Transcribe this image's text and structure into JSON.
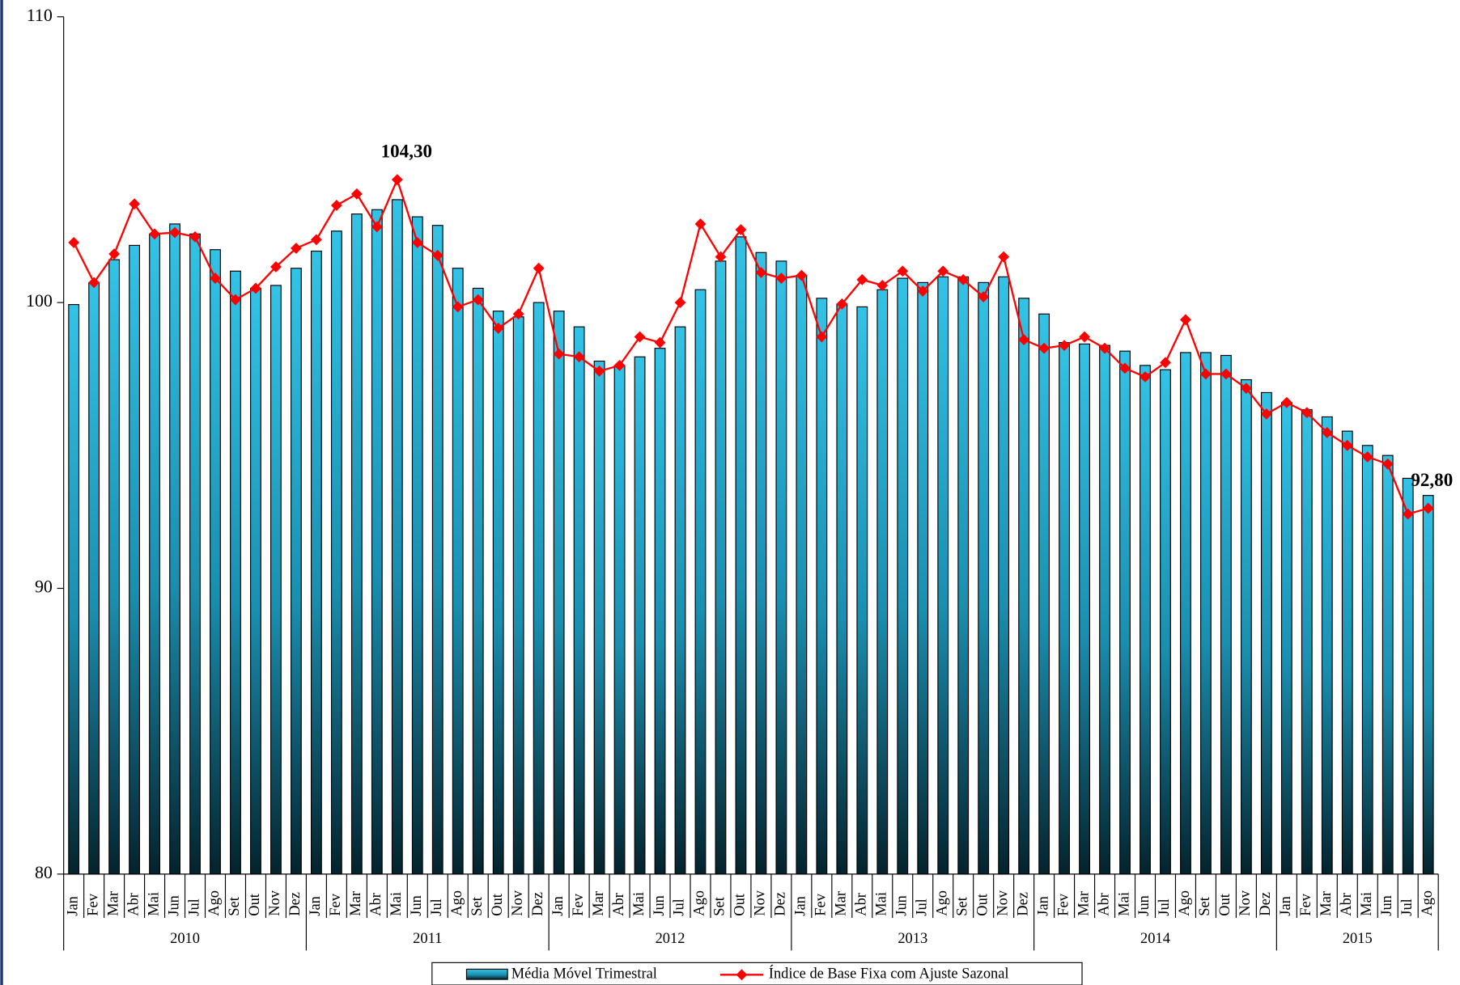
{
  "chart_data": {
    "type": "bar_line",
    "categories": [
      "Jan",
      "Fev",
      "Mar",
      "Abr",
      "Mai",
      "Jun",
      "Jul",
      "Ago",
      "Set",
      "Out",
      "Nov",
      "Dez",
      "Jan",
      "Fev",
      "Mar",
      "Abr",
      "Mai",
      "Jun",
      "Jul",
      "Ago",
      "Set",
      "Out",
      "Nov",
      "Dez",
      "Jan",
      "Fev",
      "Mar",
      "Abr",
      "Mai",
      "Jun",
      "Jul",
      "Ago",
      "Set",
      "Out",
      "Nov",
      "Dez",
      "Jan",
      "Fev",
      "Mar",
      "Abr",
      "Mai",
      "Jun",
      "Jul",
      "Ago",
      "Set",
      "Out",
      "Nov",
      "Dez",
      "Jan",
      "Fev",
      "Mar",
      "Abr",
      "Mai",
      "Jun",
      "Jul",
      "Ago",
      "Set",
      "Out",
      "Nov",
      "Dez",
      "Jan",
      "Fev",
      "Mar",
      "Abr",
      "Mai",
      "Jun",
      "Jul",
      "Ago"
    ],
    "years": [
      "2010",
      "2011",
      "2012",
      "2013",
      "2014",
      "2015"
    ],
    "series": [
      {
        "name": "Média Móvel Trimestral",
        "type": "bar",
        "color": "#29b6d8",
        "values": [
          99.93,
          100.7,
          101.5,
          102.0,
          102.4,
          102.75,
          102.4,
          101.85,
          101.1,
          100.5,
          100.6,
          101.2,
          101.8,
          102.5,
          103.1,
          103.25,
          103.6,
          103.0,
          102.7,
          101.2,
          100.5,
          99.7,
          99.5,
          100.0,
          99.7,
          99.15,
          97.95,
          97.8,
          98.1,
          98.4,
          99.15,
          100.45,
          101.45,
          102.3,
          101.75,
          101.45,
          100.95,
          100.15,
          99.95,
          99.85,
          100.45,
          100.85,
          100.7,
          100.9,
          100.9,
          100.7,
          100.9,
          100.15,
          99.6,
          98.6,
          98.55,
          98.5,
          98.3,
          97.8,
          97.65,
          98.25,
          98.25,
          98.15,
          97.3,
          96.85,
          96.5,
          96.25,
          96.0,
          95.5,
          95.0,
          94.65,
          93.85,
          93.25
        ]
      },
      {
        "name": "Índice de Base Fixa com Ajuste Sazonal",
        "type": "line",
        "color": "#ff0000",
        "values": [
          102.1,
          100.7,
          101.7,
          103.45,
          102.4,
          102.45,
          102.3,
          100.85,
          100.1,
          100.5,
          101.25,
          101.9,
          102.2,
          103.4,
          103.8,
          102.65,
          104.3,
          102.1,
          101.65,
          99.85,
          100.1,
          99.1,
          99.6,
          101.2,
          98.2,
          98.1,
          97.6,
          97.8,
          98.8,
          98.6,
          100.0,
          102.75,
          101.6,
          102.55,
          101.05,
          100.85,
          100.95,
          98.8,
          99.95,
          100.8,
          100.6,
          101.1,
          100.4,
          101.1,
          100.8,
          100.2,
          101.6,
          98.7,
          98.4,
          98.5,
          98.8,
          98.4,
          97.7,
          97.4,
          97.9,
          99.4,
          97.5,
          97.5,
          97.0,
          96.1,
          96.5,
          96.15,
          95.45,
          95.0,
          94.6,
          94.35,
          92.6,
          92.8
        ],
        "value_labels": [
          null,
          null,
          null,
          null,
          null,
          null,
          null,
          null,
          null,
          null,
          null,
          null,
          null,
          null,
          null,
          null,
          "104,30",
          null,
          null,
          null,
          null,
          null,
          null,
          null,
          null,
          null,
          null,
          null,
          null,
          null,
          null,
          null,
          null,
          null,
          null,
          null,
          null,
          null,
          null,
          null,
          null,
          null,
          null,
          null,
          null,
          null,
          null,
          null,
          null,
          null,
          null,
          null,
          null,
          null,
          null,
          null,
          null,
          null,
          null,
          null,
          null,
          null,
          null,
          null,
          null,
          null,
          null,
          "92,80"
        ]
      }
    ],
    "ylim": [
      80,
      110
    ],
    "yticks": [
      80,
      90,
      100,
      110
    ],
    "legend": "bottom"
  }
}
